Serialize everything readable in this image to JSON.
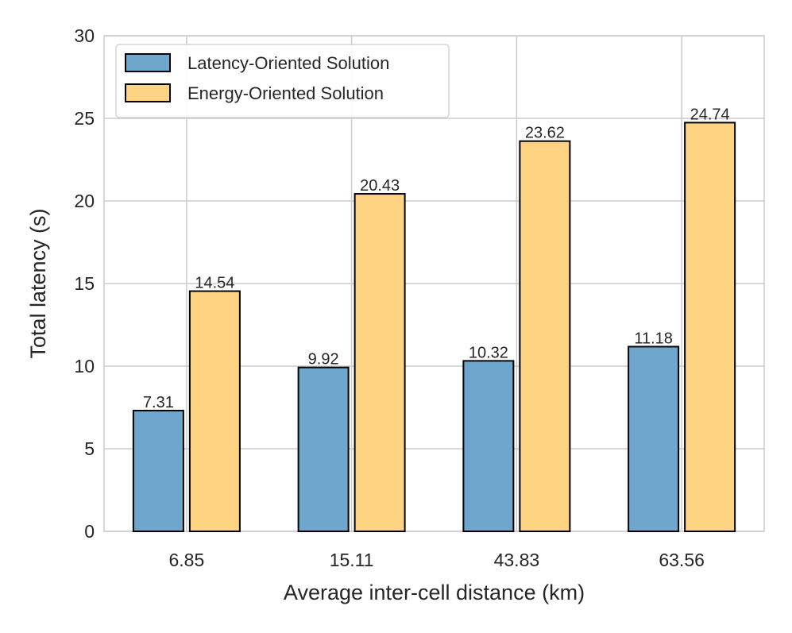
{
  "chart_data": {
    "type": "bar",
    "title": "",
    "xlabel": "Average inter-cell distance (km)",
    "ylabel": "Total latency (s)",
    "categories": [
      "6.85",
      "15.11",
      "43.83",
      "63.56"
    ],
    "ylim": [
      0,
      30
    ],
    "yticks": [
      "0",
      "5",
      "10",
      "15",
      "20",
      "25",
      "30"
    ],
    "grid": true,
    "legend_position": "top-left",
    "series": [
      {
        "name": "Latency-Oriented Solution",
        "color": "#6fa6cd",
        "values": [
          7.31,
          9.92,
          10.32,
          11.18
        ],
        "labels": [
          "7.31",
          "9.92",
          "10.32",
          "11.18"
        ]
      },
      {
        "name": "Energy-Oriented Solution",
        "color": "#fed482",
        "values": [
          14.54,
          20.43,
          23.62,
          24.74
        ],
        "labels": [
          "14.54",
          "20.43",
          "23.62",
          "24.74"
        ]
      }
    ]
  }
}
